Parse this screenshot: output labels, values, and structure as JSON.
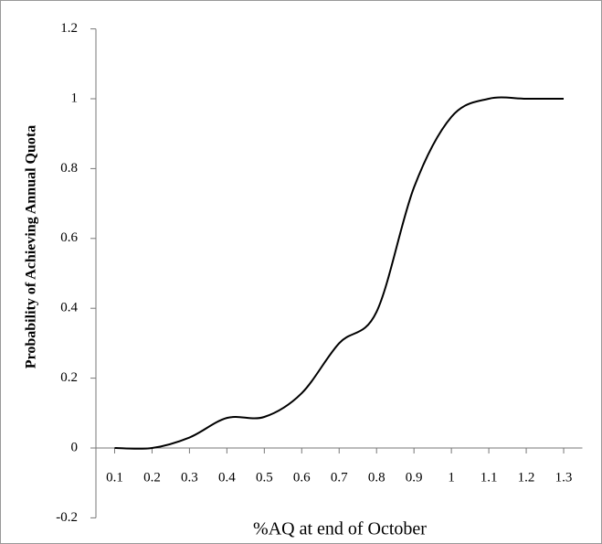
{
  "chart_data": {
    "type": "line",
    "x_label": "%AQ at end of October",
    "y_label": "Probability of Achieving Annual Quota",
    "x": [
      0.1,
      0.2,
      0.3,
      0.4,
      0.5,
      0.6,
      0.7,
      0.8,
      0.9,
      1.0,
      1.1,
      1.2,
      1.3
    ],
    "series": [
      {
        "color": "#000000",
        "values": [
          0,
          0,
          0.03,
          0.086,
          0.089,
          0.157,
          0.3,
          0.39,
          0.746,
          0.948,
          1.0,
          1.0,
          1.0
        ]
      }
    ],
    "xlim": [
      0.05,
      1.35
    ],
    "xticks": [
      0.1,
      0.2,
      0.3,
      0.4,
      0.5,
      0.6,
      0.7,
      0.8,
      0.9,
      {
        "value": 1.0,
        "label": "1"
      },
      1.1,
      1.2,
      1.3
    ],
    "ylim": [
      -0.2,
      1.2
    ],
    "yticks": [
      -0.2,
      0,
      0.2,
      0.4,
      0.6,
      0.8,
      1,
      1.2
    ],
    "grid": false,
    "smooth": true
  }
}
